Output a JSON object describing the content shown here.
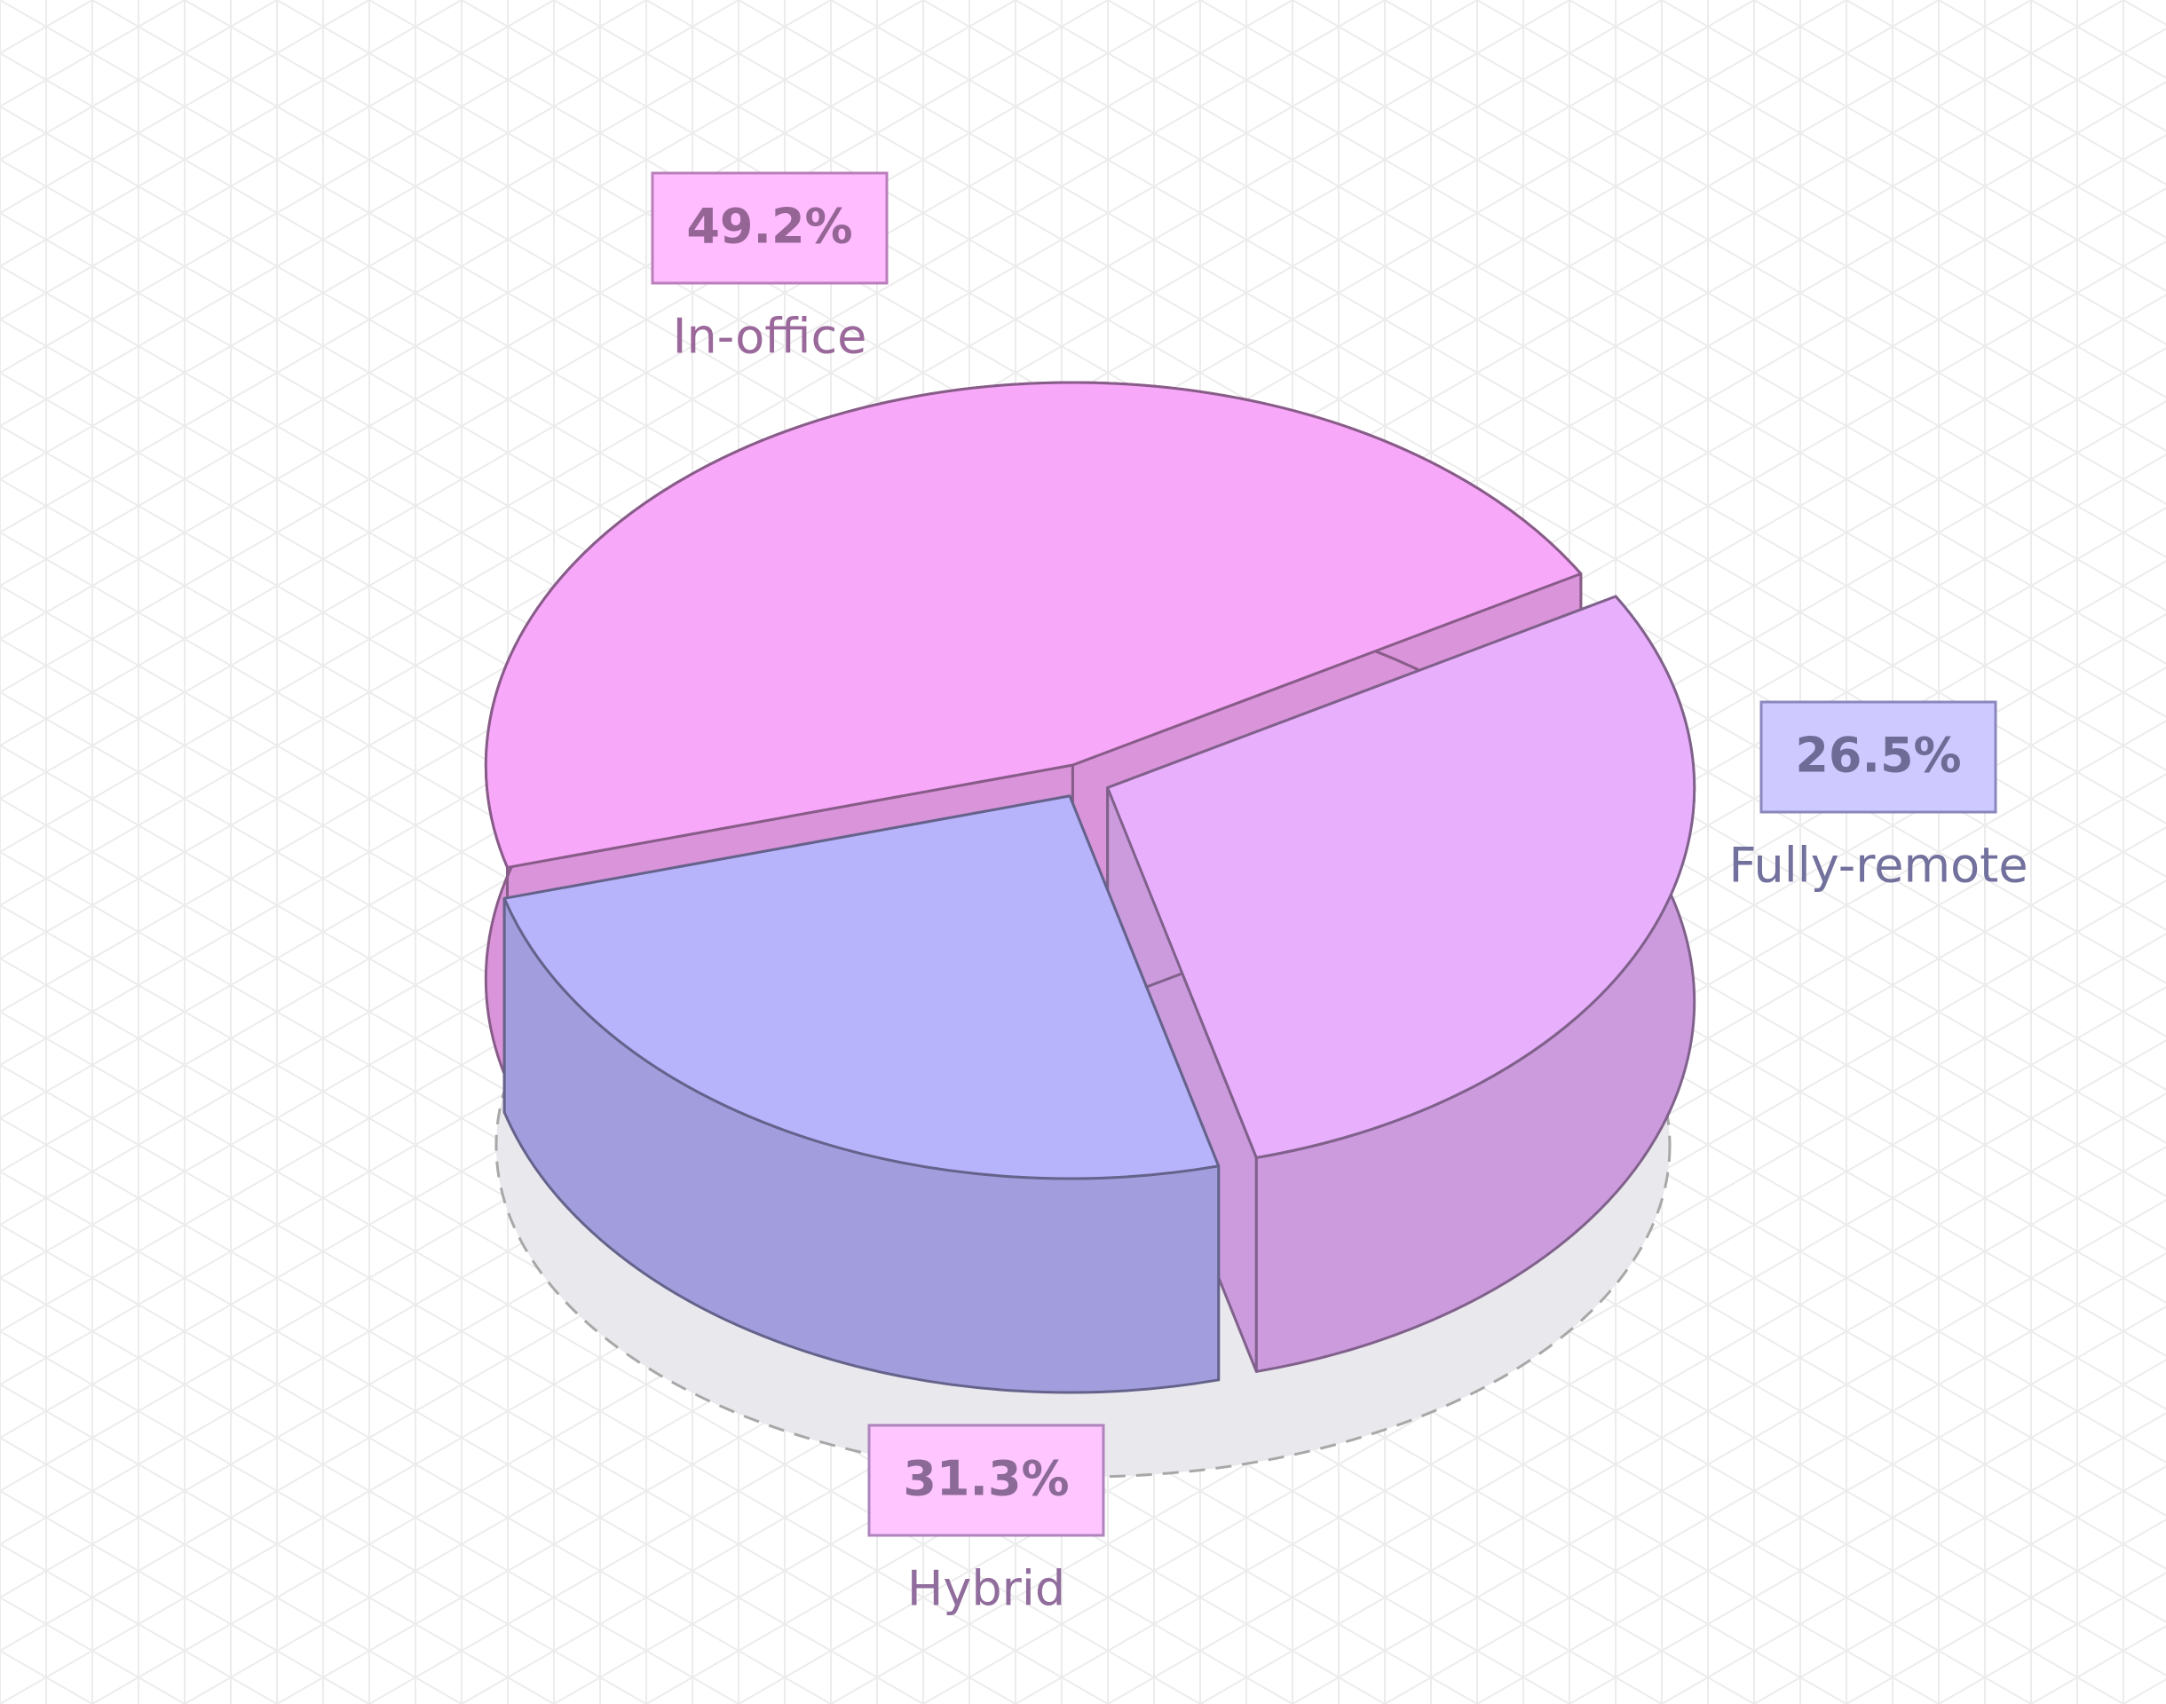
{
  "chart_data": {
    "type": "pie3d",
    "categories": [
      "In-office",
      "Fully-remote",
      "Hybrid"
    ],
    "values": [
      49.2,
      26.5,
      31.3
    ],
    "value_labels": [
      "49.2%",
      "26.5%",
      "31.3%"
    ],
    "colors": [
      "#f8a8f8",
      "#b8b4fc",
      "#e8b0fc"
    ]
  }
}
